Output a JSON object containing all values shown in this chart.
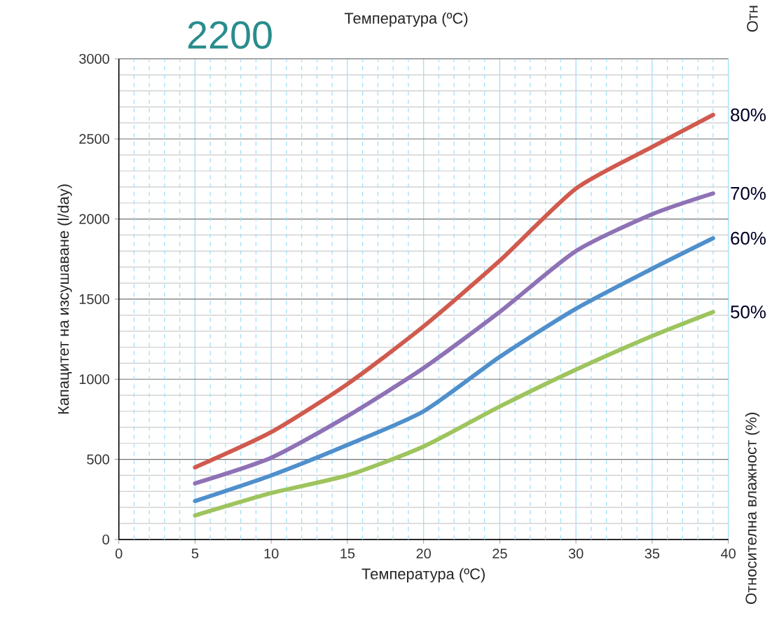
{
  "chart_data": {
    "type": "line",
    "title": "2200",
    "xlabel": "Температура (ºC)",
    "ylabel": "Капацитет на изсушаване (l/day)",
    "annotations": [
      "Температура (ºC)",
      "Отн",
      "Относителна влажност (%)"
    ],
    "x": [
      5,
      10,
      15,
      20,
      25,
      30,
      35,
      39
    ],
    "series": [
      {
        "name": "80%",
        "color": "#d05a4e",
        "values": [
          450,
          670,
          970,
          1330,
          1740,
          2190,
          2450,
          2650
        ]
      },
      {
        "name": "70%",
        "color": "#8e72b5",
        "values": [
          350,
          510,
          770,
          1070,
          1420,
          1800,
          2030,
          2160
        ]
      },
      {
        "name": "60%",
        "color": "#4f8fcc",
        "values": [
          240,
          400,
          590,
          800,
          1140,
          1440,
          1690,
          1880
        ]
      },
      {
        "name": "50%",
        "color": "#9ec45e",
        "values": [
          150,
          290,
          400,
          580,
          830,
          1060,
          1270,
          1420
        ]
      }
    ],
    "xlim": [
      0,
      40
    ],
    "ylim": [
      0,
      3000
    ],
    "xticks": [
      0,
      {
        "value": 1,
        "label": null
      },
      {
        "value": 2,
        "label": null
      },
      {
        "value": 3,
        "label": null
      },
      {
        "value": 4,
        "label": null
      },
      5,
      {
        "value": 6,
        "label": null
      },
      {
        "value": 7,
        "label": null
      },
      {
        "value": 8,
        "label": null
      },
      {
        "value": 9,
        "label": null
      },
      10,
      {
        "value": 11,
        "label": null
      },
      {
        "value": 12,
        "label": null
      },
      {
        "value": 13,
        "label": null
      },
      {
        "value": 14,
        "label": null
      },
      15,
      {
        "value": 16,
        "label": null
      },
      {
        "value": 17,
        "label": null
      },
      {
        "value": 18,
        "label": null
      },
      {
        "value": 19,
        "label": null
      },
      20,
      {
        "value": 21,
        "label": null
      },
      {
        "value": 22,
        "label": null
      },
      {
        "value": 23,
        "label": null
      },
      {
        "value": 24,
        "label": null
      },
      25,
      {
        "value": 26,
        "label": null
      },
      {
        "value": 27,
        "label": null
      },
      {
        "value": 28,
        "label": null
      },
      {
        "value": 29,
        "label": null
      },
      30,
      {
        "value": 31,
        "label": null
      },
      {
        "value": 32,
        "label": null
      },
      {
        "value": 33,
        "label": null
      },
      {
        "value": 34,
        "label": null
      },
      35,
      {
        "value": 36,
        "label": null
      },
      {
        "value": 37,
        "label": null
      },
      {
        "value": 38,
        "label": null
      },
      {
        "value": 39,
        "label": null
      },
      40
    ],
    "yticks": [
      0,
      500,
      1000,
      1500,
      2000,
      2500,
      3000
    ],
    "grid": true,
    "marker": "none",
    "line_style": "solid"
  }
}
